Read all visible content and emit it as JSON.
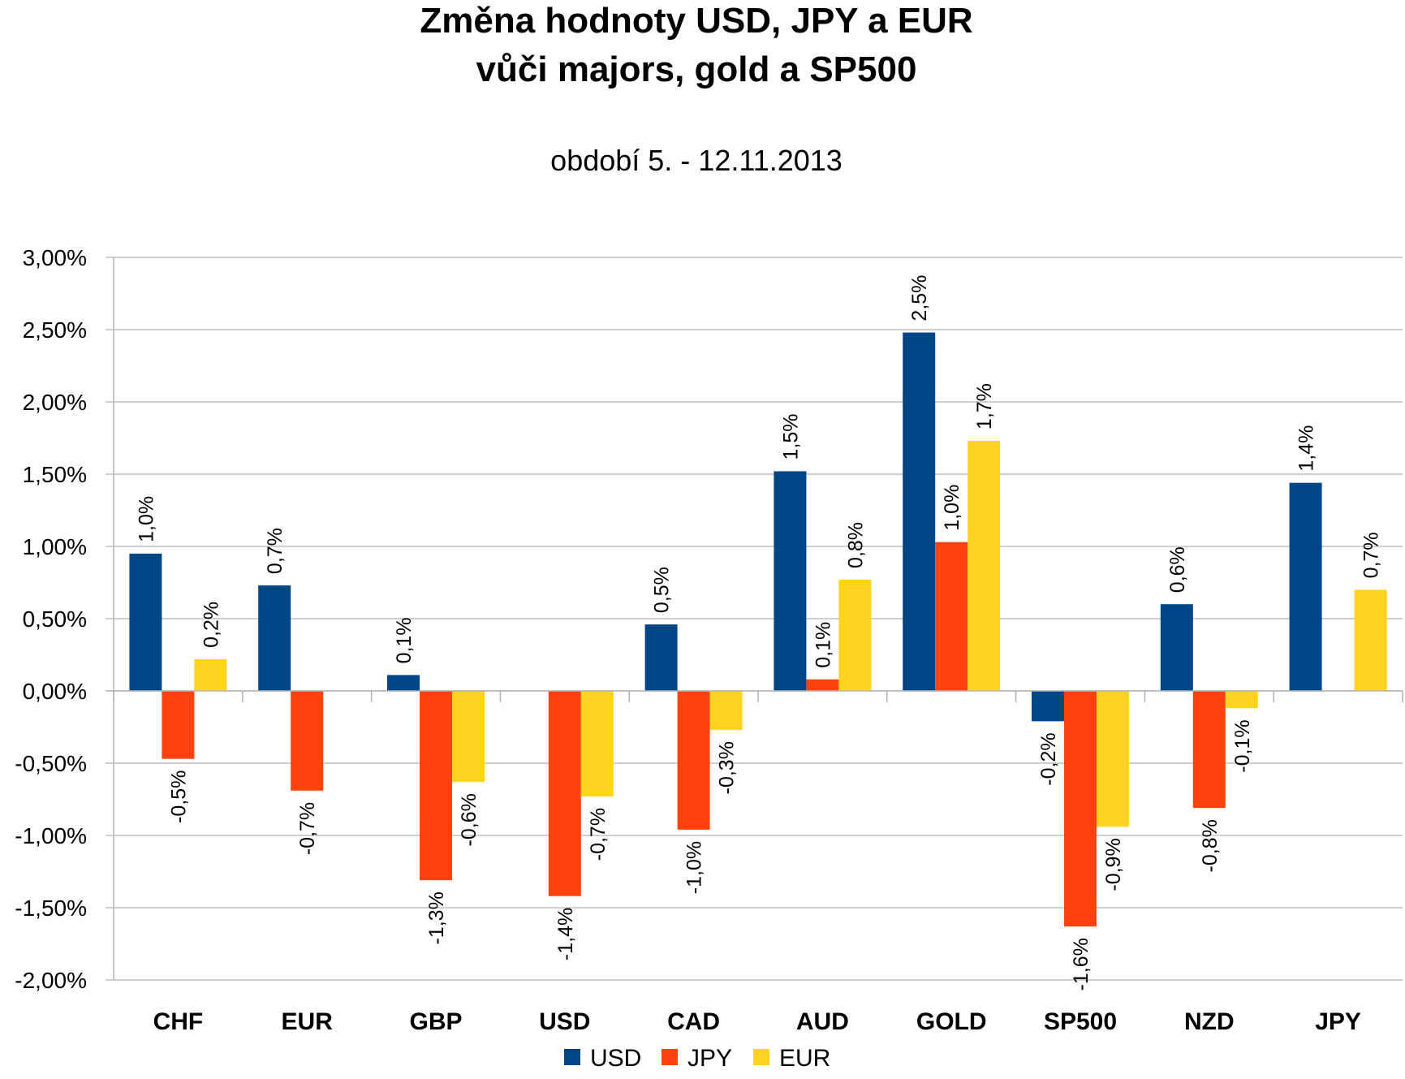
{
  "chart_data": {
    "type": "bar",
    "title_lines": [
      "Změna hodnoty USD, JPY a EUR",
      "vůči majors, gold a SP500"
    ],
    "subtitle": "období 5. - 12.11.2013",
    "categories": [
      "CHF",
      "EUR",
      "GBP",
      "USD",
      "CAD",
      "AUD",
      "GOLD",
      "SP500",
      "NZD",
      "JPY"
    ],
    "series": [
      {
        "name": "USD",
        "color": "#004586",
        "values": [
          0.95,
          0.73,
          0.11,
          null,
          0.46,
          1.52,
          2.48,
          -0.21,
          0.6,
          1.44
        ],
        "labels": [
          "1,0%",
          "0,7%",
          "0,1%",
          "",
          "0,5%",
          "1,5%",
          "2,5%",
          "-0,2%",
          "0,6%",
          "1,4%"
        ]
      },
      {
        "name": "JPY",
        "color": "#ff420e",
        "values": [
          -0.47,
          -0.69,
          -1.31,
          -1.42,
          -0.96,
          0.08,
          1.03,
          -1.63,
          -0.81,
          null
        ],
        "labels": [
          "-0,5%",
          "-0,7%",
          "-1,3%",
          "-1,4%",
          "-1,0%",
          "0,1%",
          "1,0%",
          "-1,6%",
          "-0,8%",
          ""
        ]
      },
      {
        "name": "EUR",
        "color": "#ffd320",
        "values": [
          0.22,
          null,
          -0.63,
          -0.73,
          -0.27,
          0.77,
          1.73,
          -0.94,
          -0.12,
          0.7
        ],
        "labels": [
          "0,2%",
          "",
          "-0,6%",
          "-0,7%",
          "-0,3%",
          "0,8%",
          "1,7%",
          "-0,9%",
          "-0,1%",
          "0,7%"
        ]
      }
    ],
    "ylim": [
      -2.0,
      3.0
    ],
    "yticks": [
      3.0,
      2.5,
      2.0,
      1.5,
      1.0,
      0.5,
      0.0,
      -0.5,
      -1.0,
      -1.5,
      -2.0
    ],
    "ytick_labels": [
      "3,00%",
      "2,50%",
      "2,00%",
      "1,50%",
      "1,00%",
      "0,50%",
      "0,00%",
      "-0,50%",
      "-1,00%",
      "-1,50%",
      "-2,00%"
    ],
    "grid": true,
    "legend_position": "bottom"
  }
}
